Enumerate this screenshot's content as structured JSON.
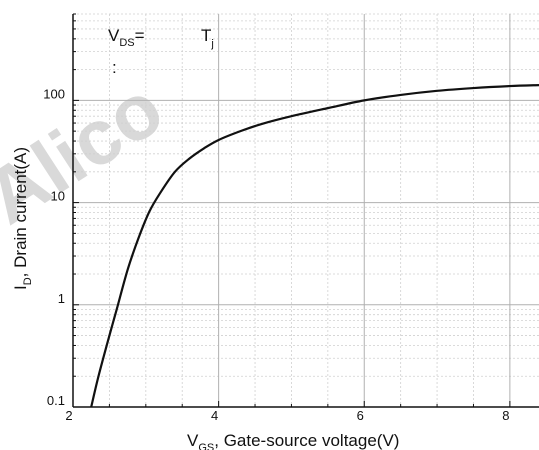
{
  "chart_data": {
    "type": "line",
    "xlabel_main": "V",
    "xlabel_sub": "GS",
    "xlabel_rest": ", Gate-source voltage(V)",
    "ylabel_main": "I",
    "ylabel_sub": "D",
    "ylabel_rest": ", Drain current(A)",
    "x_ticks": [
      2,
      4,
      6,
      8
    ],
    "x_tick_labels": [
      "2",
      "4",
      "6",
      "8"
    ],
    "y_ticks": [
      0.1,
      1,
      10,
      100
    ],
    "y_tick_labels": [
      "0.1",
      "1",
      "10",
      "100"
    ],
    "xlim": [
      2,
      8.4
    ],
    "ylim": [
      0.1,
      700
    ],
    "y_scale": "log",
    "grid": true,
    "annotation_line1_main": "V",
    "annotation_line1_sub": "DS",
    "annotation_line1_rest": "= ",
    "annotation_line1_tail": "T",
    "annotation_line1_tail_sub": "j",
    "annotation_line2": ": ",
    "series": [
      {
        "x": [
          2.25,
          2.35,
          2.5,
          2.6,
          2.75,
          2.9,
          3.05,
          3.2,
          3.4,
          3.6,
          3.8,
          4.0,
          4.3,
          4.6,
          5.0,
          5.5,
          6.0,
          6.5,
          7.0,
          7.5,
          8.0,
          8.4
        ],
        "y": [
          0.1,
          0.2,
          0.5,
          0.9,
          2.2,
          4.5,
          8.2,
          12.5,
          20,
          27,
          34,
          41,
          50,
          59,
          70,
          84,
          100,
          113,
          124,
          132,
          138,
          141
        ]
      }
    ],
    "colors": {
      "line": "#111111",
      "grid_major": "#b0b0b0",
      "grid_minor": "#d0d0d0"
    }
  },
  "watermark": {
    "text": "Alico"
  }
}
